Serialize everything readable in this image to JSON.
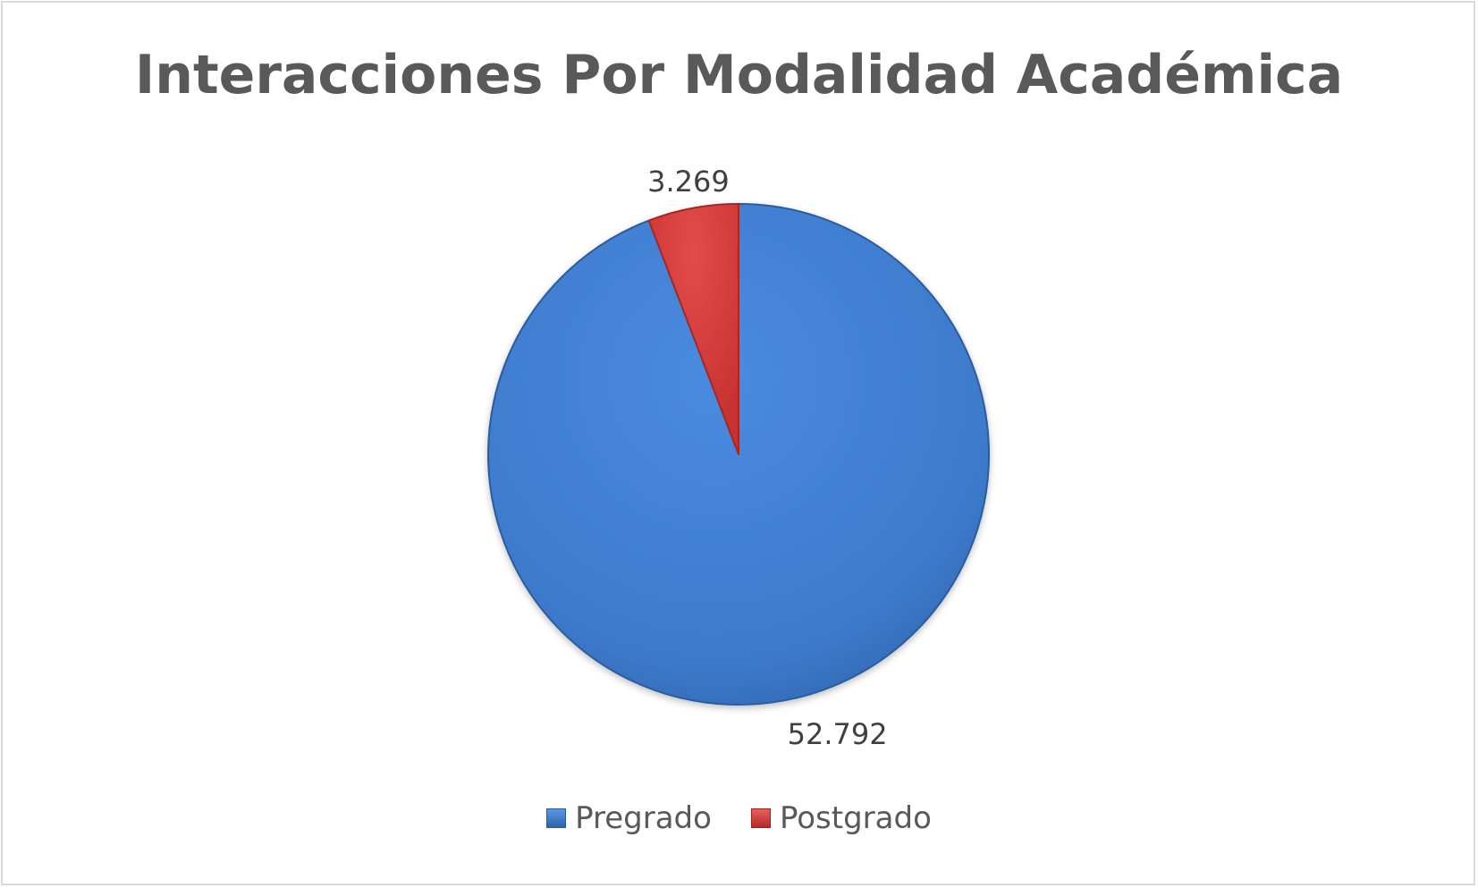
{
  "chart_data": {
    "type": "pie",
    "title": "Interacciones Por Modalidad Académica",
    "categories": [
      "Pregrado",
      "Postgrado"
    ],
    "values": [
      52792,
      3269
    ],
    "data_labels": [
      "52.792",
      "3.269"
    ],
    "colors": [
      "#3f7ccb",
      "#d9413f"
    ],
    "legend_position": "bottom",
    "start_angle_deg": 0,
    "direction": "clockwise"
  }
}
